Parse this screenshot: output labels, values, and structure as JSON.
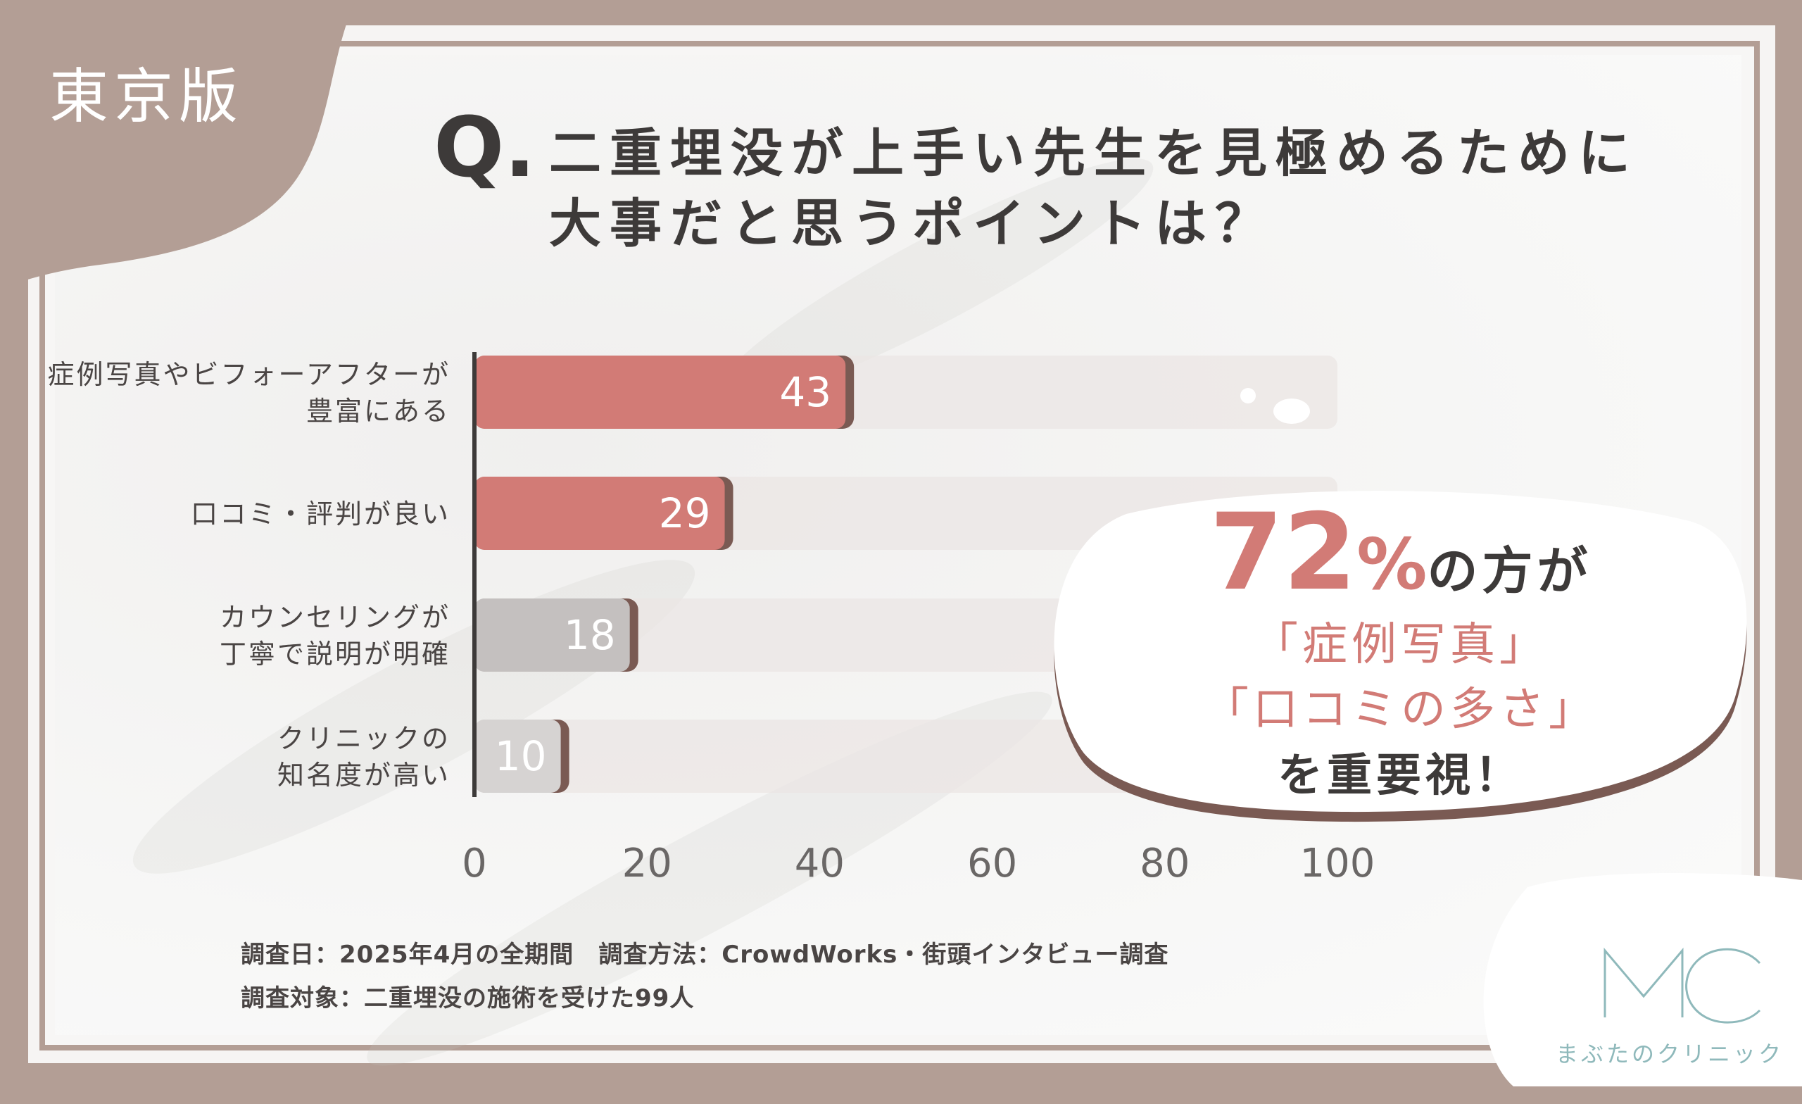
{
  "tag": "東京版",
  "question": {
    "prefix": "Q.",
    "line1": "二重埋没が上手い先生を見極めるために",
    "line2": "大事だと思うポイントは？"
  },
  "chart_data": {
    "type": "bar",
    "orientation": "horizontal",
    "categories": [
      [
        "症例写真やビフォーアフターが",
        "豊富にある"
      ],
      [
        "口コミ・評判が良い"
      ],
      [
        "カウンセリングが",
        "丁寧で説明が明確"
      ],
      [
        "クリニックの",
        "知名度が高い"
      ]
    ],
    "values": [
      43,
      29,
      18,
      10
    ],
    "xlim": [
      0,
      100
    ],
    "xticks": [
      "0",
      "20",
      "40",
      "60",
      "80",
      "100"
    ],
    "bar_colors": [
      "#d27b76",
      "#d27b76",
      "#c4c0bf",
      "#d6d3d2"
    ],
    "track_color": "#ebe6e4",
    "shadow_color": "#7a5a53"
  },
  "callout": {
    "pct": "72",
    "pct_sign": "%",
    "pct_rest": "の方が",
    "line2": "「症例写真」",
    "line3": "「口コミの多さ」",
    "line4": "を重要視！"
  },
  "footnote": {
    "line1": "調査日：2025年4月の全期間　調査方法：CrowdWorks・街頭インタビュー調査",
    "line2": "調査対象：二重埋没の施術を受けた99人"
  },
  "logo": {
    "text": "まぶたのクリニック",
    "color": "#8fb9bb"
  }
}
